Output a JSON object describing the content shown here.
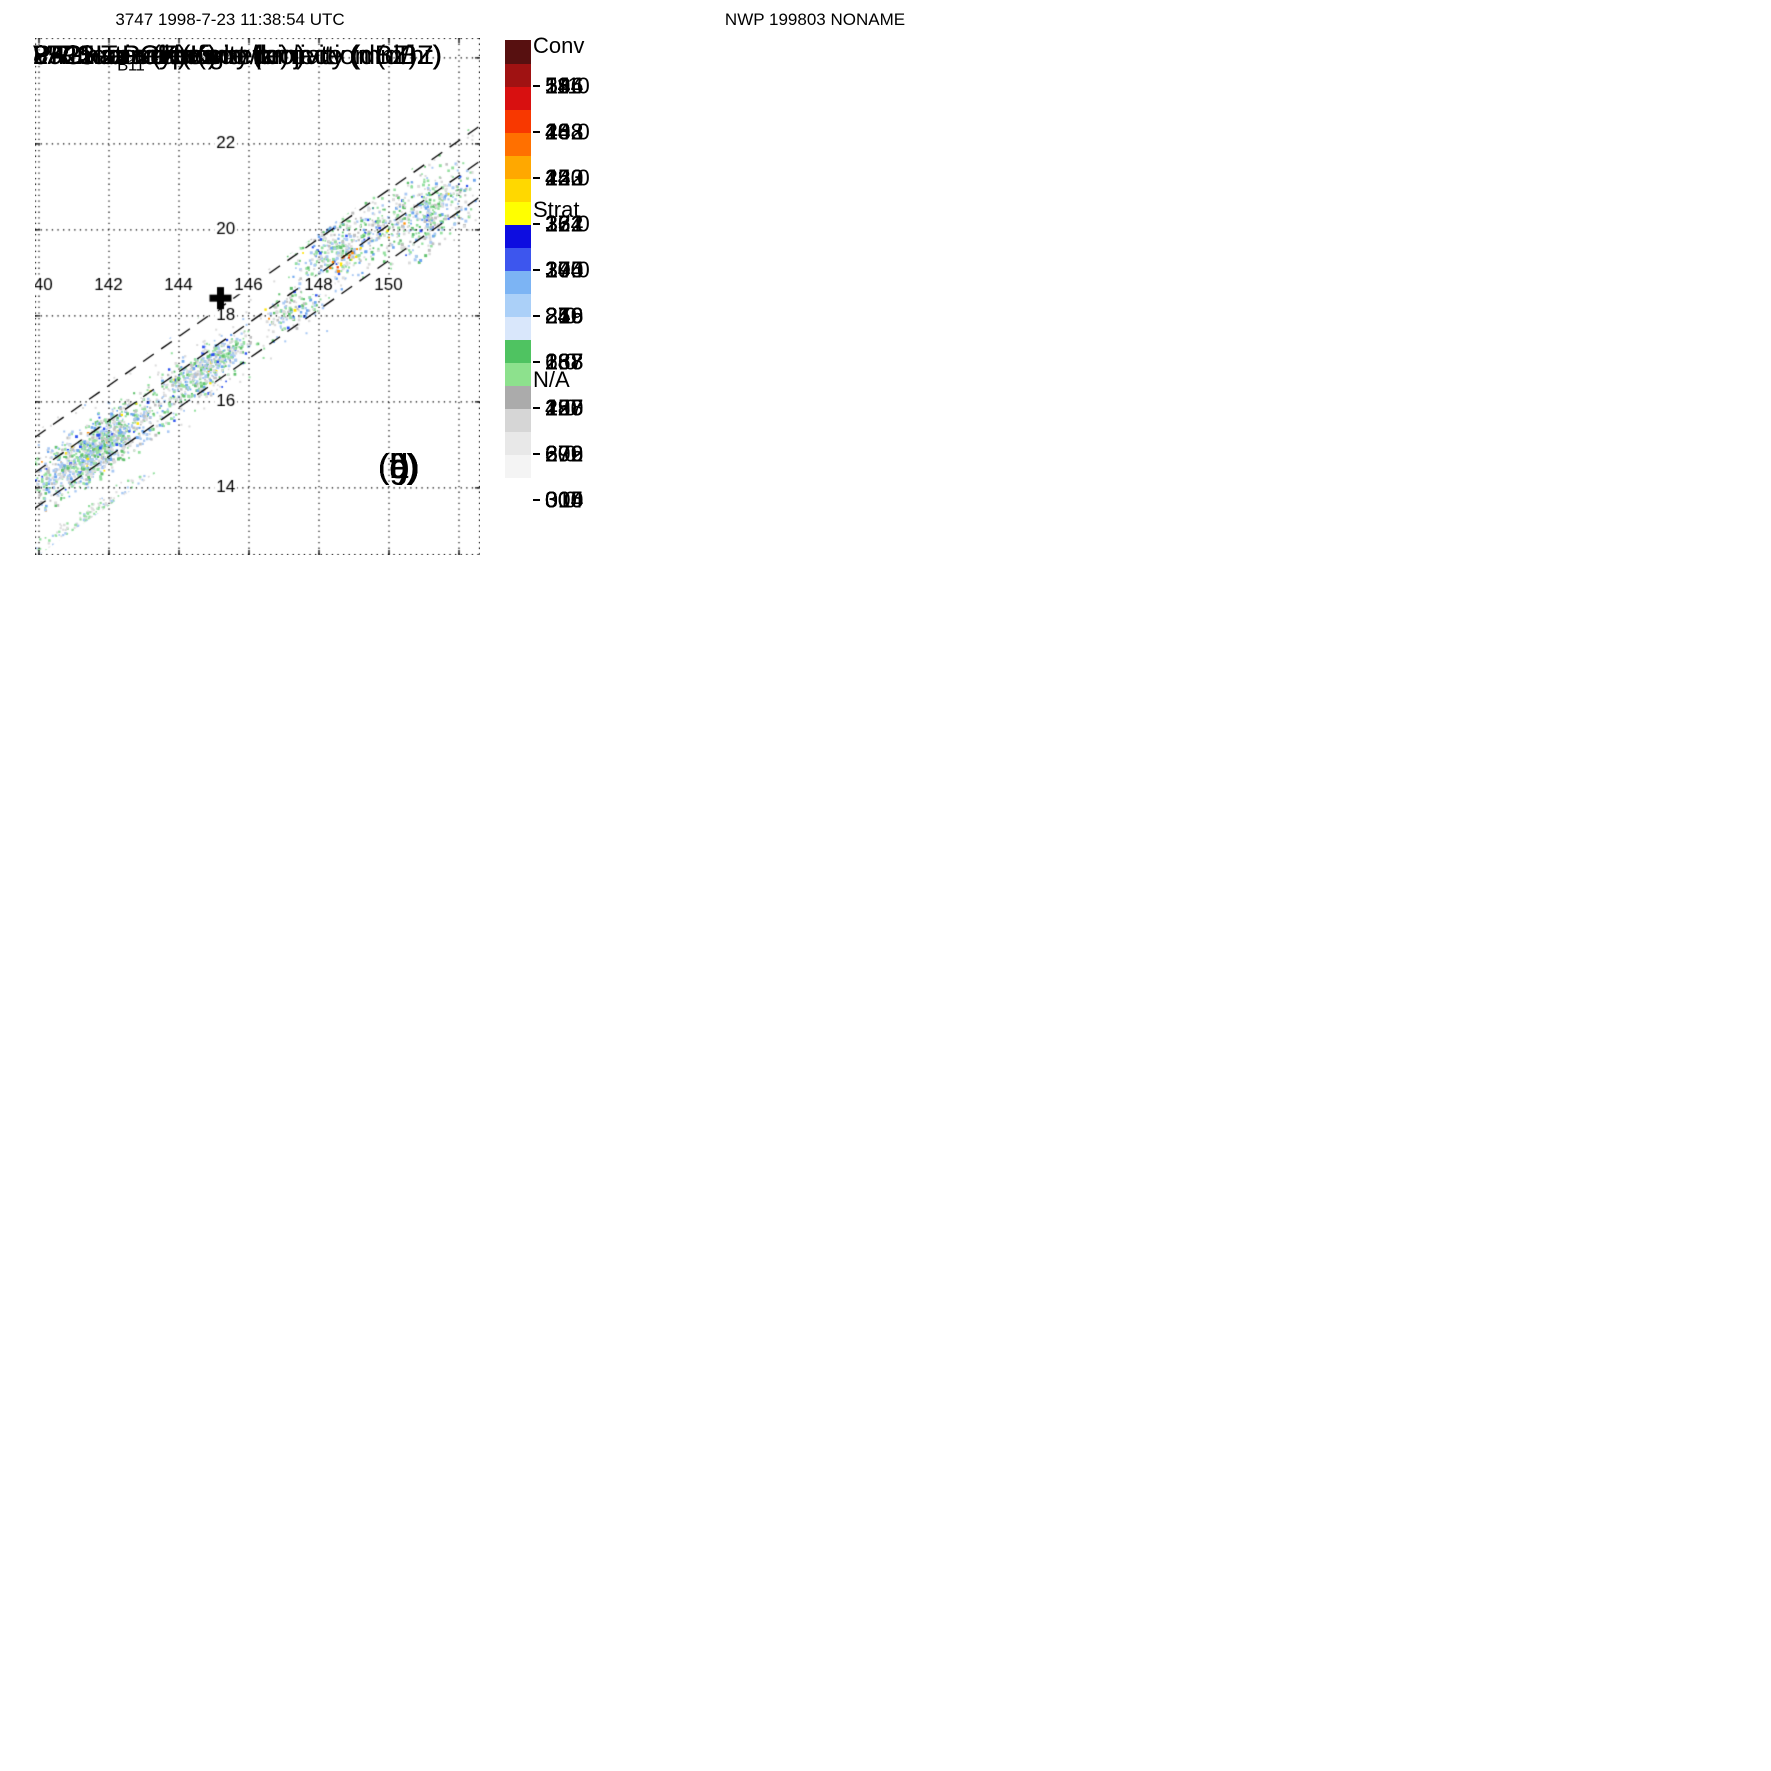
{
  "header": {
    "left_title": "3747 1998-7-23 11:38:54 UTC",
    "right_title": "NWP 199803 NONAME"
  },
  "axes": {
    "lon_ticks": [
      "140",
      "142",
      "144",
      "146",
      "148",
      "150"
    ],
    "lat_ticks": [
      "24",
      "22",
      "20",
      "18",
      "16",
      "14"
    ]
  },
  "marker": {
    "lon": 145.2,
    "lat": 18.4,
    "symbol": "+"
  },
  "colorbar_colors": [
    "#ffffff",
    "#f4f4f4",
    "#e8e8e8",
    "#d6d6d6",
    "#ababab",
    "#8de18d",
    "#4fc361",
    "#d9e7fb",
    "#abd0f8",
    "#7cb4f4",
    "#3d56ee",
    "#0d0de0",
    "#ffff00",
    "#ffd800",
    "#ffa800",
    "#ff7000",
    "#f83800",
    "#d81010",
    "#a01212",
    "#571010"
  ],
  "raintype_colorbar": {
    "labels": [
      "Conv",
      "Strat",
      "N/A"
    ],
    "colors": [
      "#ee3a0e",
      "#1616e0",
      "#ffffff"
    ],
    "boundaries": [
      0.37,
      0.74
    ]
  },
  "panels": [
    {
      "letter": "(a)",
      "title": {
        "pre": "PR near surface reflectivity (dBZ)",
        "sub": "",
        "post": ""
      },
      "style": "pr_nsr",
      "cbar": "numeric",
      "ticks": [
        "54",
        "48",
        "42",
        "36",
        "30",
        "24",
        "18",
        "12",
        "6",
        "0"
      ]
    },
    {
      "letter": "(b)",
      "title": {
        "pre": "PR max reflectivity projection (dBZ)",
        "sub": "",
        "post": ""
      },
      "style": "pr_max",
      "cbar": "numeric",
      "ticks": [
        "54",
        "48",
        "42",
        "36",
        "30",
        "24",
        "18",
        "12",
        "6",
        "0"
      ]
    },
    {
      "letter": "(c)",
      "title": {
        "pre": "2A25 near surface rainrate (mm/hr)",
        "sub": "",
        "post": ""
      },
      "style": "rain_c",
      "cbar": "numeric",
      "ticks": [
        "54",
        "48",
        "42",
        "36",
        "30",
        "24",
        "18",
        "12",
        "6",
        "0"
      ]
    },
    {
      "letter": "(d)",
      "title": {
        "pre": "85GHz PCT (K)",
        "sub": "",
        "post": ""
      },
      "style": "pct85",
      "cbar": "numeric",
      "ticks": [
        "111",
        "132",
        "153",
        "174",
        "195",
        "216",
        "237",
        "258",
        "279",
        "300"
      ]
    },
    {
      "letter": "(e)",
      "title": {
        "pre": "37GHz PCT (K)",
        "sub": "",
        "post": ""
      },
      "style": "pct37",
      "cbar": "numeric",
      "ticks": [
        "234",
        "243",
        "252",
        "261",
        "270",
        "279",
        "288",
        "297",
        "306",
        "315"
      ]
    },
    {
      "letter": "(f)",
      "title": {
        "pre": "2A12 rainrate (mm/hr)",
        "sub": "",
        "post": ""
      },
      "style": "rain_f",
      "cbar": "numeric",
      "ticks": [
        "54",
        "48",
        "42",
        "36",
        "30",
        "24",
        "18",
        "12",
        "6",
        "0"
      ]
    },
    {
      "letter": "(g)",
      "title": {
        "pre": "VIRS T",
        "sub": "B11",
        "post": " (K)"
      },
      "style": "virs",
      "cbar": "numeric",
      "ticks": [
        "196",
        "208",
        "220",
        "232",
        "244",
        "256",
        "268",
        "280",
        "292",
        "304"
      ]
    },
    {
      "letter": "(h)",
      "title": {
        "pre": "2A23 rain types",
        "sub": "",
        "post": ""
      },
      "style": "raintype",
      "cbar": "raintype",
      "ticks": []
    },
    {
      "letter": "(i)",
      "title": {
        "pre": "2A23 storm height (km)",
        "sub": "",
        "post": ""
      },
      "style": "storm_height",
      "cbar": "numeric",
      "ticks": [
        "18.0",
        "16.0",
        "14.0",
        "12.0",
        "10.0",
        "8.0",
        "6.0",
        "4.0",
        "2.0",
        "0.0"
      ]
    }
  ],
  "chart_data": [
    {
      "panel": "a",
      "type": "heatmap",
      "title": "PR near surface reflectivity (dBZ)",
      "value_unit": "dBZ",
      "colorbar_ticks": [
        54,
        48,
        42,
        36,
        30,
        24,
        18,
        12,
        6,
        0
      ],
      "lon_ticks": [
        140,
        142,
        144,
        146,
        148,
        150
      ],
      "lat_ticks": [
        14,
        16,
        18,
        20,
        22,
        24
      ],
      "lon_range": [
        139.9,
        152.6
      ],
      "lat_range": [
        12.4,
        24.45
      ],
      "swath": "narrow diagonal PR swath SW-NE with dashed boundaries; scattered echoes, strongest cluster near 140-143E 14-15.8N"
    },
    {
      "panel": "b",
      "type": "heatmap",
      "title": "PR max reflectivity projection (dBZ)",
      "value_unit": "dBZ",
      "colorbar_ticks": [
        54,
        48,
        42,
        36,
        30,
        24,
        18,
        12,
        6,
        0
      ],
      "lon_ticks": [
        140,
        142,
        144,
        146,
        148,
        150
      ],
      "lat_ticks": [
        14,
        16,
        18,
        20,
        22,
        24
      ],
      "lon_range": [
        139.9,
        152.6
      ],
      "lat_range": [
        12.4,
        24.45
      ],
      "swath": "same PR swath; denser black-contoured echoes with yellow/orange cores"
    },
    {
      "panel": "c",
      "type": "heatmap",
      "title": "2A25 near surface rainrate (mm/hr)",
      "value_unit": "mm/hr",
      "colorbar_ticks": [
        54,
        48,
        42,
        36,
        30,
        24,
        18,
        12,
        6,
        0
      ],
      "lon_ticks": [
        140,
        142,
        144,
        146,
        148,
        150
      ],
      "lat_ticks": [
        14,
        16,
        18,
        20,
        22,
        24
      ],
      "lon_range": [
        139.9,
        152.6
      ],
      "lat_range": [
        12.4,
        24.45
      ],
      "swath": "PR swath; green contoured rain areas with light-blue interiors"
    },
    {
      "panel": "d",
      "type": "heatmap",
      "title": "85GHz PCT (K)",
      "value_unit": "K",
      "colorbar_ticks": [
        111,
        132,
        153,
        174,
        195,
        216,
        237,
        258,
        279,
        300
      ],
      "lon_ticks": [
        140,
        142,
        144,
        146,
        148,
        150
      ],
      "lat_ticks": [
        14,
        16,
        18,
        20,
        22,
        24
      ],
      "lon_range": [
        139.9,
        152.6
      ],
      "lat_range": [
        12.4,
        24.45
      ],
      "swath": "wide TMI swath (white upper-left); mostly near-300K grays with small cold (blue/green-ringed) depressions"
    },
    {
      "panel": "e",
      "type": "heatmap",
      "title": "37GHz PCT (K)",
      "value_unit": "K",
      "colorbar_ticks": [
        234,
        243,
        252,
        261,
        270,
        279,
        288,
        297,
        306,
        315
      ],
      "lon_ticks": [
        140,
        142,
        144,
        146,
        148,
        150
      ],
      "lat_ticks": [
        14,
        16,
        18,
        20,
        22,
        24
      ],
      "lon_range": [
        139.9,
        152.6
      ],
      "lat_range": [
        12.4,
        24.45
      ],
      "swath": "wide TMI swath; green ~290K background, pale-blue ~275K mottling, dark-blue cluster near 140-143E 13-15N"
    },
    {
      "panel": "f",
      "type": "heatmap",
      "title": "2A12 rainrate (mm/hr)",
      "value_unit": "mm/hr",
      "colorbar_ticks": [
        54,
        48,
        42,
        36,
        30,
        24,
        18,
        12,
        6,
        0
      ],
      "lon_ticks": [
        140,
        142,
        144,
        146,
        148,
        150
      ],
      "lat_ticks": [
        14,
        16,
        18,
        20,
        22,
        24
      ],
      "lon_range": [
        139.9,
        152.6
      ],
      "lat_range": [
        12.4,
        24.45
      ],
      "swath": "wide TMI swath; large black-contoured green rain areas (light rain) with light-blue patches"
    },
    {
      "panel": "g",
      "type": "heatmap",
      "title": "VIRS TB11 (K)",
      "value_unit": "K",
      "colorbar_ticks": [
        196,
        208,
        220,
        232,
        244,
        256,
        268,
        280,
        292,
        304
      ],
      "lon_ticks": [
        140,
        142,
        144,
        146,
        148,
        150
      ],
      "lat_ticks": [
        14,
        16,
        18,
        20,
        22,
        24
      ],
      "lon_range": [
        139.9,
        152.6
      ],
      "lat_range": [
        12.4,
        24.45
      ],
      "swath": "very wide VIRS swath; warm gray areas and cold cloud tops in blue/yellow/orange/red with dark-red cores near 140-143E 13-15N and 147-152E 14-17N"
    },
    {
      "panel": "h",
      "type": "categorical-map",
      "title": "2A23 rain types",
      "categories": [
        "Conv",
        "Strat",
        "N/A"
      ],
      "category_colors": [
        "#ee3a0e",
        "#1616e0",
        "#ffffff"
      ],
      "lon_ticks": [
        140,
        142,
        144,
        146,
        148,
        150
      ],
      "lat_ticks": [
        14,
        16,
        18,
        20,
        22,
        24
      ],
      "lon_range": [
        139.9,
        152.6
      ],
      "lat_range": [
        12.4,
        24.45
      ],
      "swath": "PR swath; mostly stratiform (blue) with scattered convective (red) pixels; solid blue mass near 140-143E 14-15.5N"
    },
    {
      "panel": "i",
      "type": "heatmap",
      "title": "2A23 storm height (km)",
      "value_unit": "km",
      "colorbar_ticks": [
        18.0,
        16.0,
        14.0,
        12.0,
        10.0,
        8.0,
        6.0,
        4.0,
        2.0,
        0.0
      ],
      "lon_ticks": [
        140,
        142,
        144,
        146,
        148,
        150
      ],
      "lat_ticks": [
        14,
        16,
        18,
        20,
        22,
        24
      ],
      "lon_range": [
        139.9,
        152.6
      ],
      "lat_range": [
        12.4,
        24.45
      ],
      "swath": "PR swath; storm heights mostly 2-8 km (gray/green/light blue) with few higher cores"
    }
  ]
}
